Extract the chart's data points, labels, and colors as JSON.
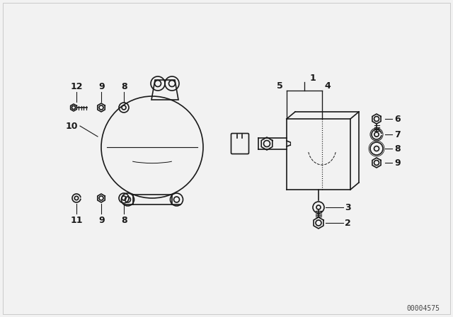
{
  "bg_color": "#f2f2f2",
  "line_color": "#1a1a1a",
  "text_color": "#1a1a1a",
  "watermark": "00004575",
  "figsize": [
    6.4,
    4.48
  ],
  "dpi": 100,
  "label_fontsize": 9,
  "watermark_fontsize": 7
}
